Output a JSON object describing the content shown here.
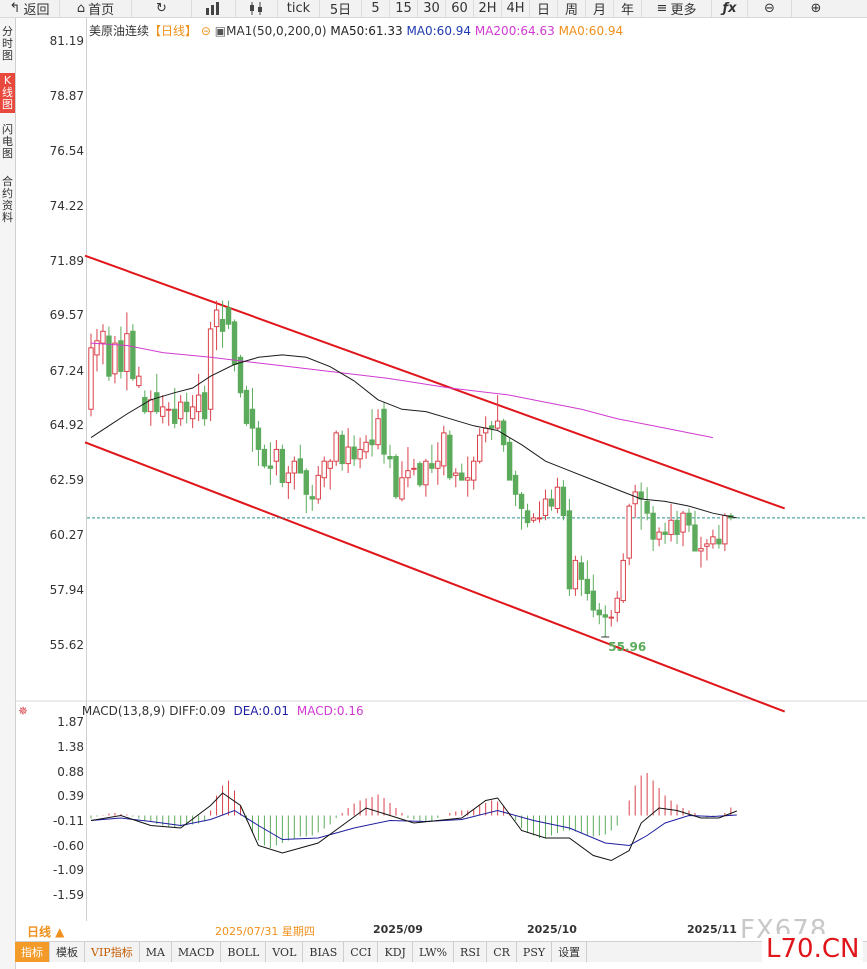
{
  "toolbar": {
    "back_label": "返回",
    "home_label": "首页",
    "tick_label": "tick",
    "periods": [
      "5日",
      "5",
      "15",
      "30",
      "60",
      "2H",
      "4H",
      "日",
      "周",
      "月",
      "年"
    ],
    "more_label": "更多"
  },
  "sidebar": {
    "items": [
      {
        "label": "分时图"
      },
      {
        "label": "K线图"
      },
      {
        "label": "闪电图"
      },
      {
        "label": "合约资料"
      }
    ]
  },
  "legend": {
    "name": "美原油连续",
    "period_tag": "【日线】",
    "ma1": "MA1(50,0,200,0)",
    "ma50": "MA50:61.33",
    "ma0a": "MA0:60.94",
    "ma200": "MA200:64.63",
    "ma0b": "MA0:60.94"
  },
  "macd_legend": {
    "params": "MACD(13,8,9)",
    "diff": "DIFF:0.09",
    "dea": "DEA:0.01",
    "macd": "MACD:0.16"
  },
  "colors": {
    "up": "#d9414a",
    "down": "#5cab5c",
    "ma50": "#1a1a1a",
    "ma200": "#d13ad1",
    "channel": "#e0161b",
    "dea": "#1e1ea0",
    "current": "#2a8f8f",
    "accent": "#e8493c"
  },
  "chart_data": [
    {
      "type": "candlestick",
      "title": "",
      "y_ticks": [
        "81.19",
        "78.87",
        "76.54",
        "74.22",
        "71.89",
        "69.57",
        "67.24",
        "64.92",
        "62.59",
        "60.27",
        "57.94",
        "55.62"
      ],
      "ylim": [
        55.0,
        81.6
      ],
      "x_ticks": [
        "2025/07/31 星期四",
        "2025/09",
        "2025/10",
        "2025/11"
      ],
      "low_annotation": "55.96",
      "current_price": 61.0,
      "ohlc": [
        [
          65.6,
          68.8,
          65.3,
          68.2
        ],
        [
          67.9,
          69.0,
          67.2,
          68.5
        ],
        [
          68.4,
          69.2,
          67.5,
          68.9
        ],
        [
          68.7,
          69.1,
          66.8,
          67.0
        ],
        [
          67.1,
          68.7,
          66.7,
          68.4
        ],
        [
          68.5,
          69.1,
          66.9,
          67.2
        ],
        [
          67.2,
          69.7,
          66.4,
          68.8
        ],
        [
          68.9,
          69.2,
          66.8,
          66.9
        ],
        [
          66.6,
          67.4,
          66.5,
          67.0
        ],
        [
          66.1,
          66.4,
          65.4,
          65.5
        ],
        [
          65.5,
          66.4,
          64.9,
          66.0
        ],
        [
          66.3,
          67.1,
          65.4,
          65.5
        ],
        [
          65.3,
          66.2,
          65.0,
          65.7
        ],
        [
          65.6,
          65.9,
          64.9,
          65.6
        ],
        [
          65.6,
          66.5,
          64.8,
          65.0
        ],
        [
          65.2,
          66.2,
          64.9,
          65.9
        ],
        [
          65.9,
          66.3,
          65.0,
          65.5
        ],
        [
          65.2,
          66.2,
          64.8,
          65.7
        ],
        [
          65.5,
          67.1,
          65.1,
          66.2
        ],
        [
          66.3,
          66.6,
          64.9,
          65.2
        ],
        [
          65.6,
          69.3,
          65.1,
          69.0
        ],
        [
          69.1,
          70.2,
          68.1,
          69.8
        ],
        [
          69.4,
          70.2,
          68.2,
          68.9
        ],
        [
          69.9,
          70.2,
          69.0,
          69.2
        ],
        [
          69.3,
          69.4,
          67.2,
          67.5
        ],
        [
          67.8,
          67.9,
          66.1,
          66.3
        ],
        [
          66.4,
          66.6,
          64.9,
          65.0
        ],
        [
          65.6,
          66.5,
          63.8,
          64.8
        ],
        [
          64.8,
          65.1,
          63.2,
          63.9
        ],
        [
          63.9,
          64.1,
          63.1,
          63.2
        ],
        [
          63.2,
          64.2,
          62.4,
          63.1
        ],
        [
          63.4,
          64.3,
          62.8,
          63.9
        ],
        [
          63.9,
          64.1,
          62.3,
          62.5
        ],
        [
          62.5,
          63.2,
          61.8,
          62.9
        ],
        [
          62.9,
          63.6,
          62.2,
          63.4
        ],
        [
          63.5,
          64.1,
          62.9,
          62.9
        ],
        [
          63.0,
          63.1,
          61.2,
          62.0
        ],
        [
          61.9,
          62.4,
          61.3,
          61.8
        ],
        [
          61.8,
          63.2,
          61.6,
          62.8
        ],
        [
          62.7,
          63.6,
          62.3,
          63.4
        ],
        [
          63.1,
          63.5,
          62.2,
          63.4
        ],
        [
          63.4,
          64.7,
          63.2,
          64.6
        ],
        [
          64.5,
          64.7,
          63.0,
          63.3
        ],
        [
          63.3,
          64.8,
          62.9,
          64.0
        ],
        [
          64.0,
          64.5,
          63.2,
          63.5
        ],
        [
          63.5,
          64.4,
          63.1,
          63.9
        ],
        [
          63.8,
          64.5,
          63.5,
          64.2
        ],
        [
          64.3,
          65.6,
          63.6,
          64.1
        ],
        [
          64.1,
          65.6,
          63.9,
          65.2
        ],
        [
          65.6,
          65.9,
          63.3,
          63.7
        ],
        [
          63.6,
          64.1,
          63.1,
          63.5
        ],
        [
          63.6,
          63.7,
          61.8,
          61.9
        ],
        [
          61.8,
          63.4,
          61.7,
          62.7
        ],
        [
          62.7,
          64.0,
          62.3,
          63.0
        ],
        [
          63.1,
          63.5,
          62.8,
          63.1
        ],
        [
          63.3,
          63.4,
          62.3,
          62.4
        ],
        [
          62.4,
          63.5,
          61.9,
          63.4
        ],
        [
          63.3,
          64.1,
          62.9,
          63.1
        ],
        [
          63.1,
          64.2,
          62.4,
          63.4
        ],
        [
          63.2,
          64.9,
          62.8,
          64.6
        ],
        [
          64.5,
          64.7,
          62.6,
          62.7
        ],
        [
          62.8,
          63.1,
          62.3,
          62.9
        ],
        [
          62.9,
          63.3,
          62.6,
          62.6
        ],
        [
          62.6,
          63.6,
          61.9,
          62.7
        ],
        [
          62.6,
          63.6,
          62.2,
          63.4
        ],
        [
          63.4,
          64.8,
          63.3,
          64.5
        ],
        [
          64.6,
          65.3,
          64.2,
          64.8
        ],
        [
          64.9,
          65.1,
          64.3,
          64.8
        ],
        [
          64.8,
          66.2,
          64.7,
          65.1
        ],
        [
          65.1,
          65.2,
          63.8,
          64.1
        ],
        [
          64.2,
          64.4,
          62.7,
          62.6
        ],
        [
          62.8,
          63.0,
          61.5,
          62.0
        ],
        [
          62.0,
          62.1,
          60.5,
          61.4
        ],
        [
          61.3,
          61.6,
          60.6,
          60.8
        ],
        [
          60.9,
          61.2,
          60.8,
          61.0
        ],
        [
          61.0,
          61.7,
          60.8,
          61.0
        ],
        [
          61.1,
          62.2,
          60.9,
          61.8
        ],
        [
          61.8,
          62.2,
          61.3,
          61.5
        ],
        [
          61.4,
          62.7,
          61.2,
          62.3
        ],
        [
          62.3,
          62.6,
          60.9,
          61.1
        ],
        [
          61.3,
          61.8,
          57.7,
          58.0
        ],
        [
          58.0,
          59.4,
          57.7,
          59.2
        ],
        [
          59.1,
          59.4,
          57.7,
          58.4
        ],
        [
          58.4,
          59.2,
          57.5,
          57.8
        ],
        [
          57.9,
          58.6,
          56.8,
          57.1
        ],
        [
          57.1,
          57.4,
          56.5,
          56.9
        ],
        [
          56.9,
          57.3,
          55.96,
          56.8
        ],
        [
          56.8,
          57.1,
          56.4,
          56.8
        ],
        [
          57.0,
          57.9,
          56.6,
          57.6
        ],
        [
          57.5,
          59.5,
          57.4,
          59.2
        ],
        [
          59.3,
          61.6,
          59.0,
          61.5
        ],
        [
          61.6,
          62.4,
          61.0,
          62.1
        ],
        [
          62.1,
          62.5,
          60.5,
          61.8
        ],
        [
          61.7,
          62.3,
          60.9,
          61.2
        ],
        [
          61.2,
          61.5,
          59.6,
          60.1
        ],
        [
          60.1,
          60.6,
          59.8,
          60.4
        ],
        [
          60.4,
          60.8,
          59.9,
          60.3
        ],
        [
          60.3,
          61.6,
          60.0,
          60.9
        ],
        [
          60.9,
          61.3,
          59.9,
          60.3
        ],
        [
          60.4,
          61.3,
          59.8,
          61.2
        ],
        [
          61.2,
          61.4,
          60.4,
          60.7
        ],
        [
          60.7,
          61.3,
          59.6,
          59.6
        ],
        [
          59.6,
          60.2,
          58.9,
          59.7
        ],
        [
          59.8,
          60.1,
          59.2,
          59.9
        ],
        [
          59.9,
          60.5,
          59.7,
          60.2
        ],
        [
          60.1,
          60.7,
          59.7,
          59.9
        ],
        [
          59.9,
          61.2,
          59.6,
          61.1
        ],
        [
          61.1,
          61.2,
          60.9,
          61.0
        ]
      ],
      "ma50": [
        [
          0,
          64.4
        ],
        [
          3,
          64.9
        ],
        [
          6,
          65.4
        ],
        [
          10,
          66.0
        ],
        [
          14,
          66.3
        ],
        [
          17,
          66.5
        ],
        [
          20,
          67.0
        ],
        [
          24,
          67.5
        ],
        [
          28,
          67.8
        ],
        [
          32,
          67.9
        ],
        [
          36,
          67.8
        ],
        [
          40,
          67.4
        ],
        [
          44,
          66.8
        ],
        [
          48,
          66.0
        ],
        [
          52,
          65.6
        ],
        [
          56,
          65.5
        ],
        [
          60,
          65.2
        ],
        [
          64,
          64.9
        ],
        [
          68,
          64.7
        ],
        [
          72,
          64.1
        ],
        [
          76,
          63.4
        ],
        [
          80,
          63.0
        ],
        [
          84,
          62.6
        ],
        [
          88,
          62.2
        ],
        [
          92,
          61.8
        ],
        [
          96,
          61.7
        ],
        [
          100,
          61.5
        ],
        [
          104,
          61.2
        ],
        [
          108,
          61.0
        ]
      ],
      "ma200": [
        [
          0,
          68.4
        ],
        [
          6,
          68.3
        ],
        [
          12,
          68.0
        ],
        [
          20,
          67.8
        ],
        [
          30,
          67.5
        ],
        [
          40,
          67.2
        ],
        [
          50,
          66.9
        ],
        [
          60,
          66.5
        ],
        [
          70,
          66.2
        ],
        [
          76,
          65.9
        ],
        [
          82,
          65.6
        ],
        [
          88,
          65.2
        ],
        [
          94,
          64.9
        ],
        [
          100,
          64.6
        ],
        [
          104,
          64.4
        ]
      ],
      "channel_upper": [
        [
          -1,
          72.1
        ],
        [
          116,
          61.4
        ]
      ],
      "channel_lower": [
        [
          -1,
          64.2
        ],
        [
          116,
          52.8
        ]
      ]
    },
    {
      "type": "macd",
      "title": "",
      "y_ticks": [
        "1.87",
        "1.38",
        "0.88",
        "0.39",
        "-0.11",
        "-0.60",
        "-1.09",
        "-1.59"
      ],
      "ylim": [
        -1.8,
        2.0
      ],
      "hist": [
        -0.06,
        -0.02,
        0.01,
        0.04,
        0.05,
        0.03,
        0.02,
        -0.02,
        -0.06,
        -0.1,
        -0.13,
        -0.17,
        -0.2,
        -0.22,
        -0.24,
        -0.22,
        -0.2,
        -0.18,
        -0.16,
        -0.12,
        0.1,
        0.4,
        0.6,
        0.7,
        0.5,
        0.2,
        -0.1,
        -0.35,
        -0.5,
        -0.6,
        -0.65,
        -0.6,
        -0.55,
        -0.5,
        -0.48,
        -0.42,
        -0.42,
        -0.4,
        -0.34,
        -0.26,
        -0.18,
        -0.05,
        0.05,
        0.15,
        0.24,
        0.3,
        0.34,
        0.37,
        0.42,
        0.35,
        0.25,
        0.15,
        0.05,
        -0.05,
        -0.08,
        -0.12,
        -0.12,
        -0.1,
        -0.05,
        0.0,
        0.05,
        0.08,
        0.1,
        0.1,
        0.12,
        0.2,
        0.25,
        0.3,
        0.28,
        0.2,
        0.05,
        -0.1,
        -0.25,
        -0.35,
        -0.4,
        -0.45,
        -0.45,
        -0.4,
        -0.35,
        -0.3,
        -0.3,
        -0.32,
        -0.35,
        -0.4,
        -0.42,
        -0.4,
        -0.38,
        -0.3,
        -0.2,
        0.0,
        0.3,
        0.6,
        0.8,
        0.85,
        0.7,
        0.55,
        0.4,
        0.3,
        0.22,
        0.15,
        0.1,
        0.05,
        -0.02,
        -0.05,
        -0.03,
        0.0,
        0.05,
        0.16
      ],
      "diff": [
        [
          0,
          -0.1
        ],
        [
          5,
          0.0
        ],
        [
          10,
          -0.2
        ],
        [
          15,
          -0.25
        ],
        [
          20,
          0.2
        ],
        [
          22,
          0.45
        ],
        [
          25,
          0.2
        ],
        [
          28,
          -0.6
        ],
        [
          32,
          -0.75
        ],
        [
          38,
          -0.55
        ],
        [
          42,
          -0.2
        ],
        [
          46,
          0.15
        ],
        [
          50,
          0.0
        ],
        [
          54,
          -0.15
        ],
        [
          58,
          -0.1
        ],
        [
          62,
          -0.05
        ],
        [
          66,
          0.3
        ],
        [
          68,
          0.35
        ],
        [
          72,
          -0.3
        ],
        [
          76,
          -0.45
        ],
        [
          80,
          -0.45
        ],
        [
          84,
          -0.8
        ],
        [
          87,
          -0.9
        ],
        [
          90,
          -0.7
        ],
        [
          92,
          -0.15
        ],
        [
          95,
          0.15
        ],
        [
          98,
          0.1
        ],
        [
          102,
          -0.05
        ],
        [
          105,
          -0.05
        ],
        [
          108,
          0.09
        ]
      ],
      "dea": [
        [
          0,
          -0.1
        ],
        [
          5,
          -0.05
        ],
        [
          10,
          -0.12
        ],
        [
          15,
          -0.2
        ],
        [
          20,
          -0.08
        ],
        [
          24,
          0.1
        ],
        [
          28,
          -0.2
        ],
        [
          32,
          -0.48
        ],
        [
          38,
          -0.45
        ],
        [
          44,
          -0.25
        ],
        [
          50,
          -0.1
        ],
        [
          56,
          -0.12
        ],
        [
          62,
          -0.08
        ],
        [
          68,
          0.1
        ],
        [
          74,
          -0.1
        ],
        [
          80,
          -0.25
        ],
        [
          86,
          -0.55
        ],
        [
          90,
          -0.6
        ],
        [
          93,
          -0.4
        ],
        [
          96,
          -0.15
        ],
        [
          100,
          0.0
        ],
        [
          104,
          -0.02
        ],
        [
          108,
          0.01
        ]
      ]
    }
  ],
  "bottom_tabs": [
    "指标",
    "模板",
    "VIP指标",
    "MA",
    "MACD",
    "BOLL",
    "VOL",
    "BIAS",
    "CCI",
    "KDJ",
    "LW%",
    "RSI",
    "CR",
    "PSY",
    "设置"
  ],
  "period_selector": "日线 ▲",
  "watermark": {
    "top": "FX678",
    "bottom": "L70.CN"
  }
}
